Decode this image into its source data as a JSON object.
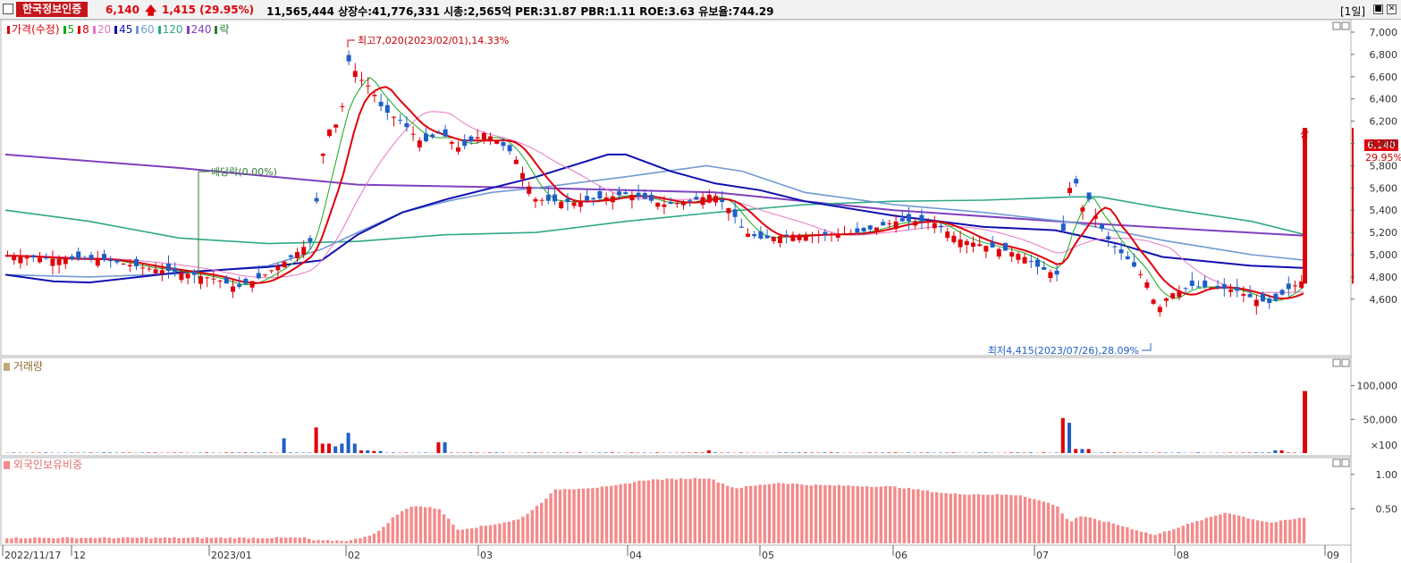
{
  "header": {
    "stock_name": "한국정보인증",
    "price": "6,140",
    "change": "1,415",
    "change_pct": "(29.95%)",
    "stats": "11,565,444  상장수:41,776,331 시총:2,565억 PER:31.87 PBR:1.11 ROE:3.63 유보율:744.29",
    "period": "[1일]"
  },
  "price_pane": {
    "legend": [
      {
        "label": "가격(수정)",
        "color": "#e0000a"
      },
      {
        "label": "5",
        "color": "#19a619"
      },
      {
        "label": "8",
        "color": "#e0000a"
      },
      {
        "label": "20",
        "color": "#e676c4"
      },
      {
        "label": "45",
        "color": "#1010b0"
      },
      {
        "label": "60",
        "color": "#6f9bd2"
      },
      {
        "label": "120",
        "color": "#2ea889"
      },
      {
        "label": "240",
        "color": "#8040c0"
      },
      {
        "label": "락",
        "color": "#2e7d32"
      }
    ],
    "y_ticks": [
      "7,000",
      "6,800",
      "6,600",
      "6,400",
      "6,200",
      "6,000",
      "5,800",
      "5,600",
      "5,400",
      "5,200",
      "5,000",
      "4,800",
      "4,600"
    ],
    "annotations": {
      "high": "최고7,020(2023/02/01),14.33%",
      "low": "최저4,415(2023/07/26),28.09%",
      "dividend": "배당락(0.00%)",
      "upper_limit": "상",
      "last_price": "6,140",
      "last_pct": "29.95%"
    }
  },
  "volume_pane": {
    "title": "거래량",
    "y_ticks": [
      "100,000",
      "50,000",
      "×100"
    ]
  },
  "foreign_pane": {
    "title": "외국인보유비중",
    "y_ticks": [
      "1.00",
      "0.50"
    ]
  },
  "x_axis": {
    "labels": [
      "2022/11/17",
      "12",
      "2023/01",
      "02",
      "03",
      "04",
      "05",
      "06",
      "07",
      "08",
      "09"
    ]
  },
  "colors": {
    "up": "#e0000a",
    "down": "#1f5fc8",
    "ma5": "#19a619",
    "ma8": "#e0000a",
    "ma20": "#e676c4",
    "ma45": "#1010b0",
    "ma60": "#6f9bd2",
    "ma120": "#2ea889",
    "ma240": "#8040c0",
    "foreign": "#f58a8a"
  }
}
